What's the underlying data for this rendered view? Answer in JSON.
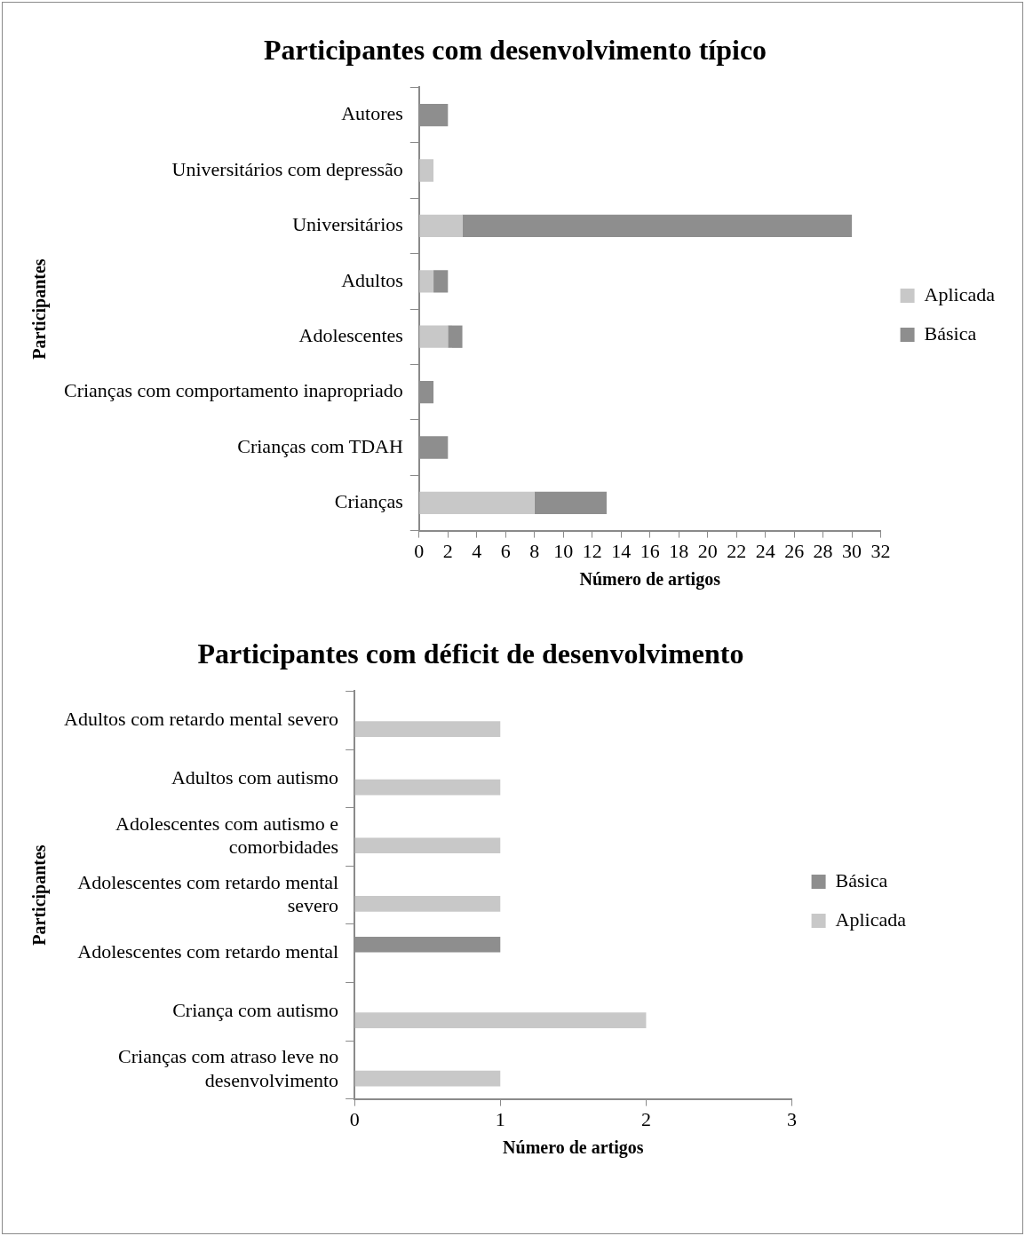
{
  "chart_data": [
    {
      "type": "bar",
      "title": "Participantes com desenvolvimento típico",
      "xlabel": "Número de artigos",
      "ylabel": "Participantes",
      "orientation": "horizontal",
      "stacked": true,
      "categories": [
        "Autores",
        "Universitários com depressão",
        "Universitários",
        "Adultos",
        "Adolescentes",
        "Crianças com comportamento inapropriado",
        "Crianças com TDAH",
        "Crianças"
      ],
      "series": [
        {
          "name": "Aplicada",
          "color": "#c8c8c8",
          "values": [
            null,
            1,
            3,
            1,
            2,
            null,
            null,
            8
          ]
        },
        {
          "name": "Básica",
          "color": "#8e8e8e",
          "values": [
            2,
            null,
            27,
            1,
            1,
            1,
            2,
            5
          ]
        }
      ],
      "xlim": [
        0,
        32
      ],
      "xticks": [
        0,
        2,
        4,
        6,
        8,
        10,
        12,
        14,
        16,
        18,
        20,
        22,
        24,
        26,
        28,
        30,
        32
      ],
      "grid": false,
      "legend": "right"
    },
    {
      "type": "bar",
      "title": "Participantes com déficit de desenvolvimento",
      "xlabel": "Número de artigos",
      "ylabel": "Participantes",
      "orientation": "horizontal",
      "categories": [
        "Adultos com retardo mental severo",
        "Adultos com autismo",
        "Adolescentes com autismo e comorbidades",
        "Adolescentes com retardo mental severo",
        "Adolescentes com retardo mental",
        "Criança com autismo",
        "Crianças com atraso leve no desenvolvimento"
      ],
      "series": [
        {
          "name": "Básica",
          "color": "#8e8e8e",
          "values": [
            null,
            null,
            null,
            null,
            1,
            null,
            null
          ]
        },
        {
          "name": "Aplicada",
          "color": "#c8c8c8",
          "values": [
            1,
            1,
            1,
            1,
            null,
            2,
            1
          ]
        }
      ],
      "xlim": [
        0,
        3
      ],
      "xticks": [
        0,
        1,
        2,
        3
      ],
      "grid": false,
      "legend": "right"
    }
  ]
}
